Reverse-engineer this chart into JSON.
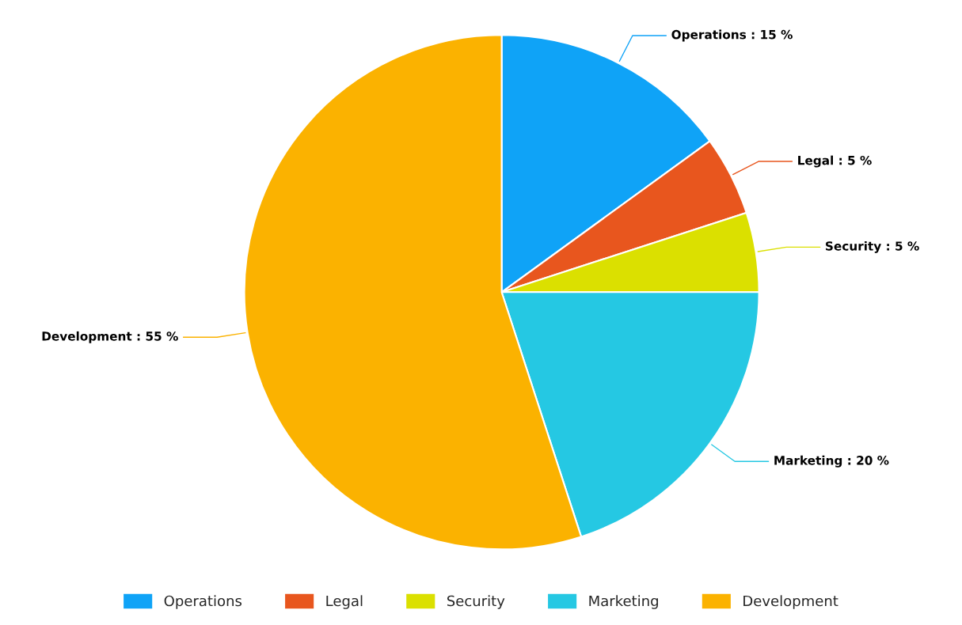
{
  "chart_data": {
    "type": "pie",
    "categories": [
      "Operations",
      "Legal",
      "Security",
      "Marketing",
      "Development"
    ],
    "values": [
      15,
      5,
      5,
      20,
      55
    ],
    "colors": [
      "#0fa3f7",
      "#e8561e",
      "#dbe000",
      "#25c8e3",
      "#fbb200"
    ],
    "value_labels": [
      "Operations : 15 %",
      "Legal : 5 %",
      "Security : 5 %",
      "Marketing : 20 %",
      "Development : 55 %"
    ],
    "legend": "bottom"
  }
}
